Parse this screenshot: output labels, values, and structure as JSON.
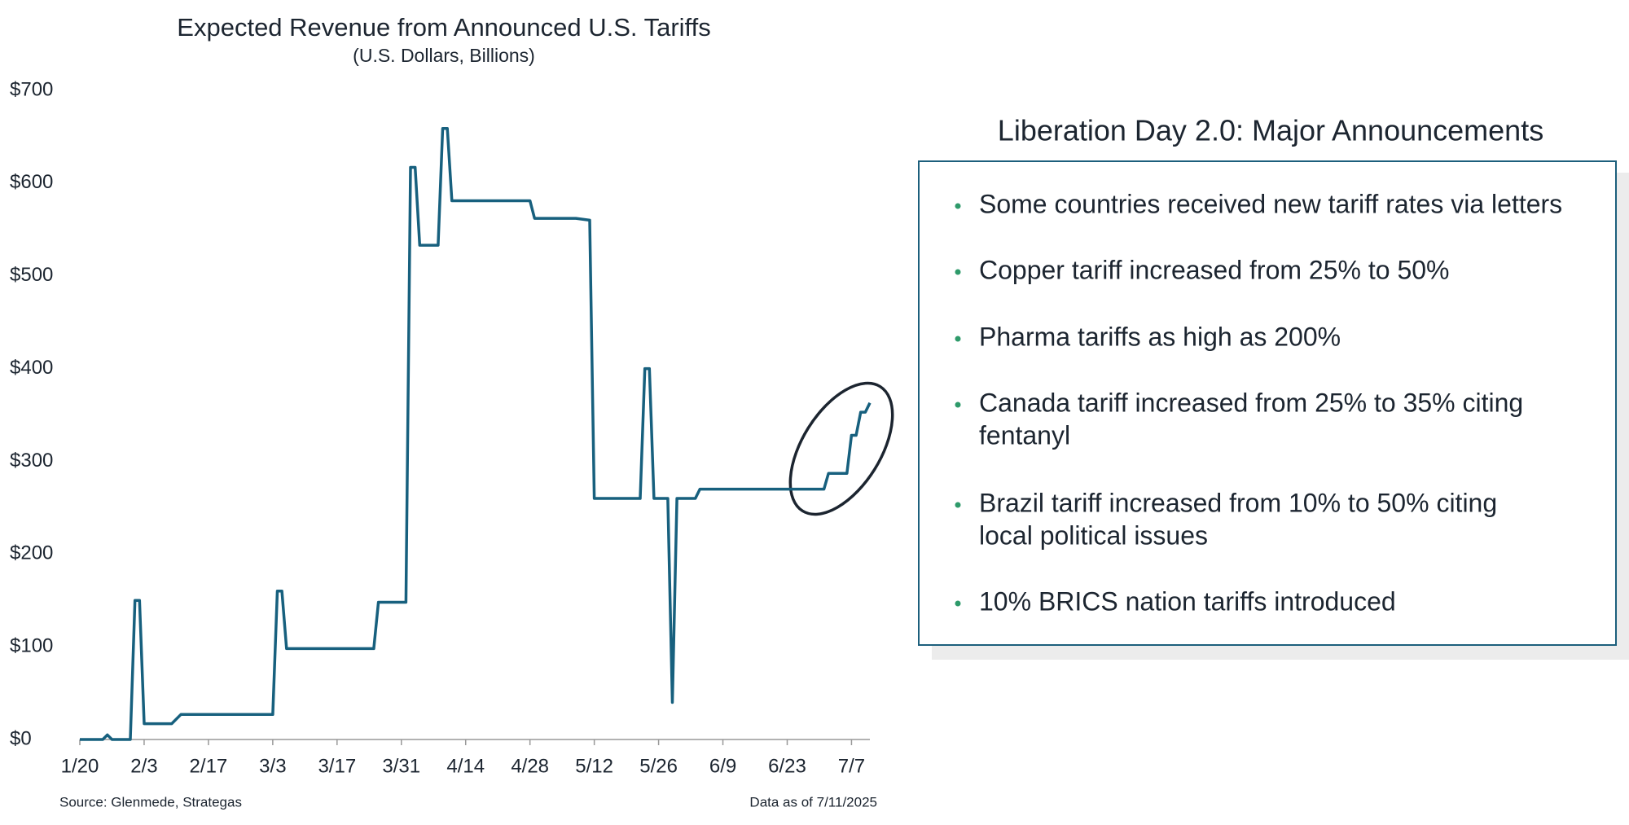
{
  "chart_data": {
    "type": "line",
    "title": "Expected Revenue from Announced U.S. Tariffs",
    "subtitle": "(U.S. Dollars, Billions)",
    "x": [
      "1/20",
      "1/25",
      "1/26",
      "1/27",
      "1/31",
      "2/1",
      "2/2",
      "2/3",
      "2/9",
      "2/11",
      "3/3",
      "3/4",
      "3/5",
      "3/6",
      "3/25",
      "3/26",
      "4/1",
      "4/2",
      "4/3",
      "4/4",
      "4/8",
      "4/9",
      "4/10",
      "4/11",
      "4/28",
      "4/29",
      "5/8",
      "5/11",
      "5/12",
      "5/22",
      "5/23",
      "5/24",
      "5/25",
      "5/28",
      "5/29",
      "5/30",
      "6/3",
      "6/4",
      "7/1",
      "7/2",
      "7/6",
      "7/7",
      "7/8",
      "7/9",
      "7/10",
      "7/11"
    ],
    "values": [
      0,
      0,
      5,
      0,
      0,
      150,
      150,
      17,
      17,
      27,
      27,
      160,
      160,
      98,
      98,
      148,
      148,
      617,
      617,
      533,
      533,
      659,
      659,
      581,
      581,
      562,
      562,
      560,
      260,
      260,
      400,
      400,
      260,
      260,
      40,
      260,
      260,
      270,
      270,
      287,
      287,
      328,
      328,
      353,
      353,
      363
    ],
    "color": "#17607e",
    "xlim": [
      "1/20",
      "7/11"
    ],
    "xticks": [
      "1/20",
      "2/3",
      "2/17",
      "3/3",
      "3/17",
      "3/31",
      "4/14",
      "4/28",
      "5/12",
      "5/26",
      "6/9",
      "6/23",
      "7/7"
    ],
    "ylim": [
      0,
      700
    ],
    "yticks": [
      {
        "value": 0,
        "label": "$0"
      },
      {
        "value": 100,
        "label": "$100"
      },
      {
        "value": 200,
        "label": "$200"
      },
      {
        "value": 300,
        "label": "$300"
      },
      {
        "value": 400,
        "label": "$400"
      },
      {
        "value": 500,
        "label": "$500"
      },
      {
        "value": 600,
        "label": "$600"
      },
      {
        "value": 700,
        "label": "$700"
      }
    ],
    "source": "Source: Glenmede, Strategas",
    "data_note": "Data as of 7/11/2025"
  },
  "panel": {
    "title": "Liberation Day 2.0: Major Announcements",
    "bullets": [
      [
        "Some countries received new tariff rates via letters"
      ],
      [
        "Copper tariff increased from 25% to 50%"
      ],
      [
        "Pharma tariffs as high as 200%"
      ],
      [
        "Canada tariff increased from 25% to 35% citing",
        "fentanyl"
      ],
      [
        "Brazil tariff increased from 10% to 50% citing",
        "local political issues"
      ],
      [
        "10% BRICS nation tariffs introduced"
      ]
    ]
  }
}
